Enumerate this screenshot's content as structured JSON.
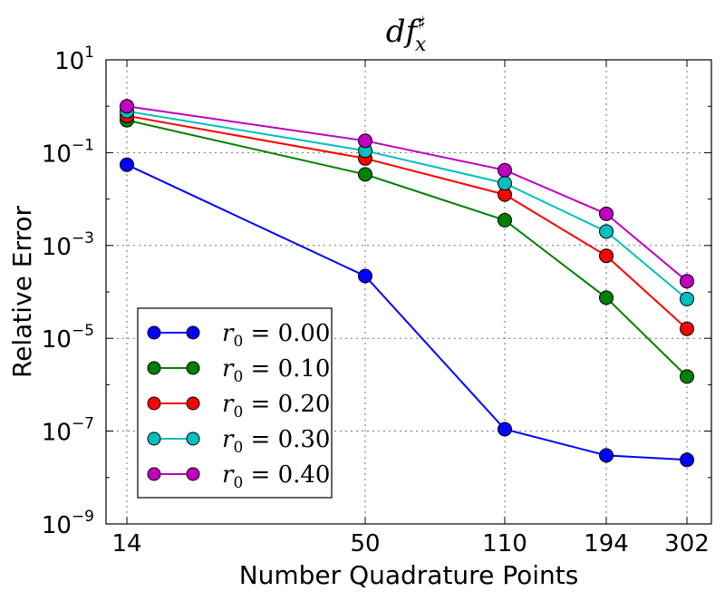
{
  "chart_data": {
    "type": "line",
    "title": "df",
    "title_sub": "x",
    "title_sup": "♯",
    "xlabel": "Number Quadrature Points",
    "ylabel": "Relative Error",
    "x": [
      14,
      50,
      110,
      194,
      302
    ],
    "x_tick_labels": [
      "14",
      "50",
      "110",
      "194",
      "302"
    ],
    "y_scale": "log",
    "ylim": [
      1e-09,
      10
    ],
    "y_ticks": [
      {
        "base": "10",
        "exp": "1",
        "value": 10
      },
      {
        "base": "10",
        "exp": "−1",
        "value": 0.1
      },
      {
        "base": "10",
        "exp": "−3",
        "value": 0.001
      },
      {
        "base": "10",
        "exp": "−5",
        "value": 1e-05
      },
      {
        "base": "10",
        "exp": "−7",
        "value": 1e-07
      },
      {
        "base": "10",
        "exp": "−9",
        "value": 1e-09
      }
    ],
    "grid": true,
    "legend_position": "lower-left",
    "series": [
      {
        "name": "r0 = 0.00",
        "symbol": "r",
        "subscript": "0",
        "rest": " = 0.00",
        "color": "#0000ff",
        "values": [
          0.055,
          0.00022,
          1.1e-07,
          3e-08,
          2.4e-08
        ]
      },
      {
        "name": "r0 = 0.10",
        "symbol": "r",
        "subscript": "0",
        "rest": " = 0.10",
        "color": "#008000",
        "values": [
          0.5,
          0.034,
          0.0035,
          7.5e-05,
          1.5e-06
        ]
      },
      {
        "name": "r0 = 0.20",
        "symbol": "r",
        "subscript": "0",
        "rest": " = 0.20",
        "color": "#ff0000",
        "values": [
          0.62,
          0.075,
          0.0125,
          0.0006,
          1.6e-05
        ]
      },
      {
        "name": "r0 = 0.30",
        "symbol": "r",
        "subscript": "0",
        "rest": " = 0.30",
        "color": "#00bfbf",
        "values": [
          0.78,
          0.11,
          0.022,
          0.002,
          7e-05
        ]
      },
      {
        "name": "r0 = 0.40",
        "symbol": "r",
        "subscript": "0",
        "rest": " = 0.40",
        "color": "#bf00bf",
        "values": [
          1.0,
          0.18,
          0.042,
          0.0048,
          0.00017
        ]
      }
    ]
  }
}
